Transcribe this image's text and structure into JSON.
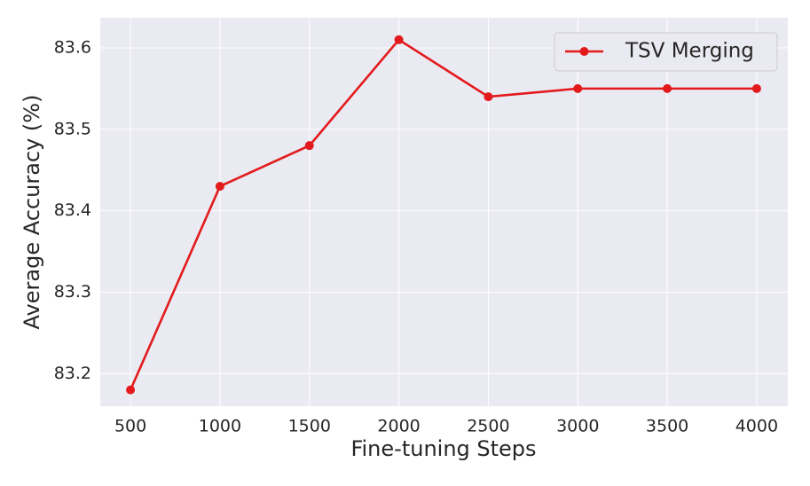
{
  "chart_data": {
    "type": "line",
    "xlabel": "Fine-tuning Steps",
    "ylabel": "Average Accuracy (%)",
    "x": [
      500,
      1000,
      1500,
      2000,
      2500,
      3000,
      3500,
      4000
    ],
    "series": [
      {
        "name": "TSV Merging",
        "color": "#e31a1c",
        "values": [
          83.18,
          83.43,
          83.48,
          83.61,
          83.54,
          83.55,
          83.55,
          83.55
        ]
      }
    ],
    "xlim": [
      331,
      4174
    ],
    "ylim": [
      83.16,
      83.637
    ],
    "xticks": [
      500,
      1000,
      1500,
      2000,
      2500,
      3000,
      3500,
      4000
    ],
    "yticks": [
      83.2,
      83.3,
      83.4,
      83.5,
      83.6
    ],
    "grid": true,
    "legend": "upper right"
  }
}
